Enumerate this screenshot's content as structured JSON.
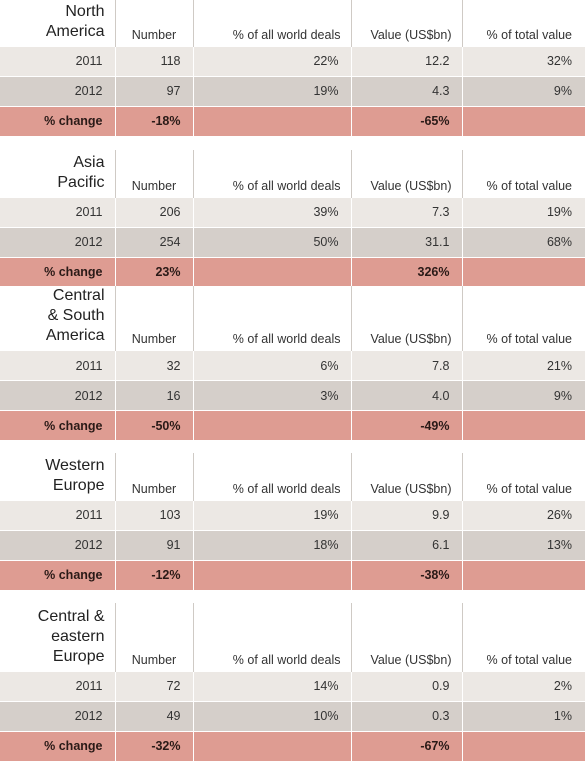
{
  "columns": [
    "Number",
    "% of all world deals",
    "Value (US$bn)",
    "% of total value"
  ],
  "change_label": "% change",
  "regions": [
    {
      "name_lines": [
        "North",
        "America"
      ],
      "rows": [
        {
          "year": "2011",
          "number": "118",
          "pct_deals": "22%",
          "value": "12.2",
          "pct_value": "32%"
        },
        {
          "year": "2012",
          "number": "97",
          "pct_deals": "19%",
          "value": "4.3",
          "pct_value": "9%"
        }
      ],
      "change": {
        "number": "-18%",
        "value": "-65%"
      }
    },
    {
      "name_lines": [
        "Asia",
        "Pacific"
      ],
      "rows": [
        {
          "year": "2011",
          "number": "206",
          "pct_deals": "39%",
          "value": "7.3",
          "pct_value": "19%"
        },
        {
          "year": "2012",
          "number": "254",
          "pct_deals": "50%",
          "value": "31.1",
          "pct_value": "68%"
        }
      ],
      "change": {
        "number": "23%",
        "value": "326%"
      }
    },
    {
      "name_lines": [
        "Central",
        "& South",
        "America"
      ],
      "rows": [
        {
          "year": "2011",
          "number": "32",
          "pct_deals": "6%",
          "value": "7.8",
          "pct_value": "21%"
        },
        {
          "year": "2012",
          "number": "16",
          "pct_deals": "3%",
          "value": "4.0",
          "pct_value": "9%"
        }
      ],
      "change": {
        "number": "-50%",
        "value": "-49%"
      }
    },
    {
      "name_lines": [
        "Western",
        "Europe"
      ],
      "rows": [
        {
          "year": "2011",
          "number": "103",
          "pct_deals": "19%",
          "value": "9.9",
          "pct_value": "26%"
        },
        {
          "year": "2012",
          "number": "91",
          "pct_deals": "18%",
          "value": "6.1",
          "pct_value": "13%"
        }
      ],
      "change": {
        "number": "-12%",
        "value": "-38%"
      }
    },
    {
      "name_lines": [
        "Central &",
        "eastern",
        "Europe"
      ],
      "rows": [
        {
          "year": "2011",
          "number": "72",
          "pct_deals": "14%",
          "value": "0.9",
          "pct_value": "2%"
        },
        {
          "year": "2012",
          "number": "49",
          "pct_deals": "10%",
          "value": "0.3",
          "pct_value": "1%"
        }
      ],
      "change": {
        "number": "-32%",
        "value": "-67%"
      }
    }
  ]
}
